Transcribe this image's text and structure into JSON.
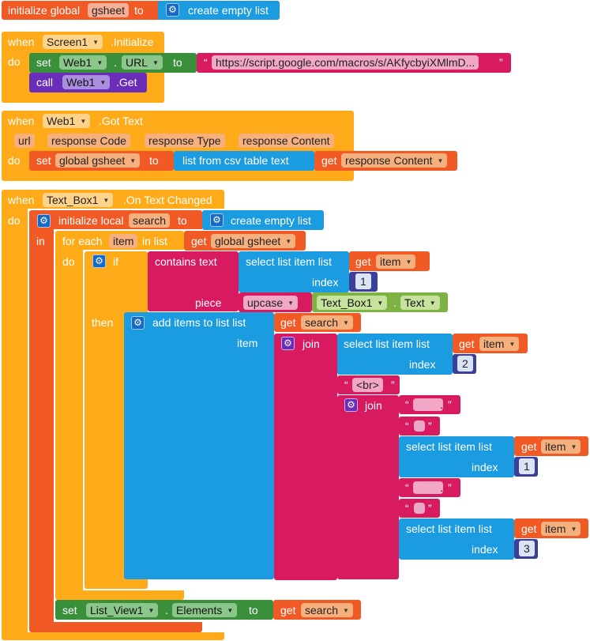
{
  "colors": {
    "control": "#ffab19",
    "variable": "#f15a24",
    "list": "#1b9be0",
    "text": "#d81b60",
    "component_set": "#3a8f3a",
    "component_call": "#6a2db8",
    "math": "#3b3f99",
    "textbox_prop": "#7cb342"
  },
  "block1": {
    "kw": "initialize global",
    "name": "gsheet",
    "to": "to",
    "list_label": "create empty list"
  },
  "block2": {
    "when": "when",
    "component": "Screen1",
    "event": ".Initialize",
    "do": "do",
    "set": "set",
    "set_component": "Web1",
    "dot": ".",
    "property": "URL",
    "to": "to",
    "url_text": "https://script.google.com/macros/s/AKfycbyiXMlmD...",
    "call": "call",
    "call_component": "Web1",
    "call_method": ".Get"
  },
  "block3": {
    "when": "when",
    "component": "Web1",
    "event": ".Got Text",
    "params": [
      "url",
      "response Code",
      "response Type",
      "response Content"
    ],
    "do": "do",
    "set": "set",
    "var": "global gsheet",
    "to": "to",
    "csv": "list from csv table  text",
    "get": "get",
    "get_var": "response Content"
  },
  "block4": {
    "when": "when",
    "component": "Text_Box1",
    "event": ".On Text Changed",
    "do": "do",
    "init_local": "initialize local",
    "local_name": "search",
    "to": "to",
    "empty_list": "create empty list",
    "in": "in",
    "for_each": "for each",
    "item": "item",
    "in_list": "in list",
    "get": "get",
    "global_gsheet": "global gsheet",
    "do2": "do",
    "if": "if",
    "contains": "contains  text",
    "select_list_item": "select list item  list",
    "item_var": "item",
    "index": "index",
    "idx1": "1",
    "piece": "piece",
    "upcase": "upcase",
    "textbox": "Text_Box1",
    "dot": ".",
    "text_prop": "Text",
    "then": "then",
    "add_items": "add items to list   list",
    "search_var": "search",
    "item_label": "item",
    "join": "join",
    "idx2": "2",
    "br": "<br>",
    "join2": "join",
    "dot_str": ".",
    "idx_a": "1",
    "idx_b": "3",
    "set": "set",
    "list_view": "List_View1",
    "elements": "Elements",
    "to2": "to"
  }
}
